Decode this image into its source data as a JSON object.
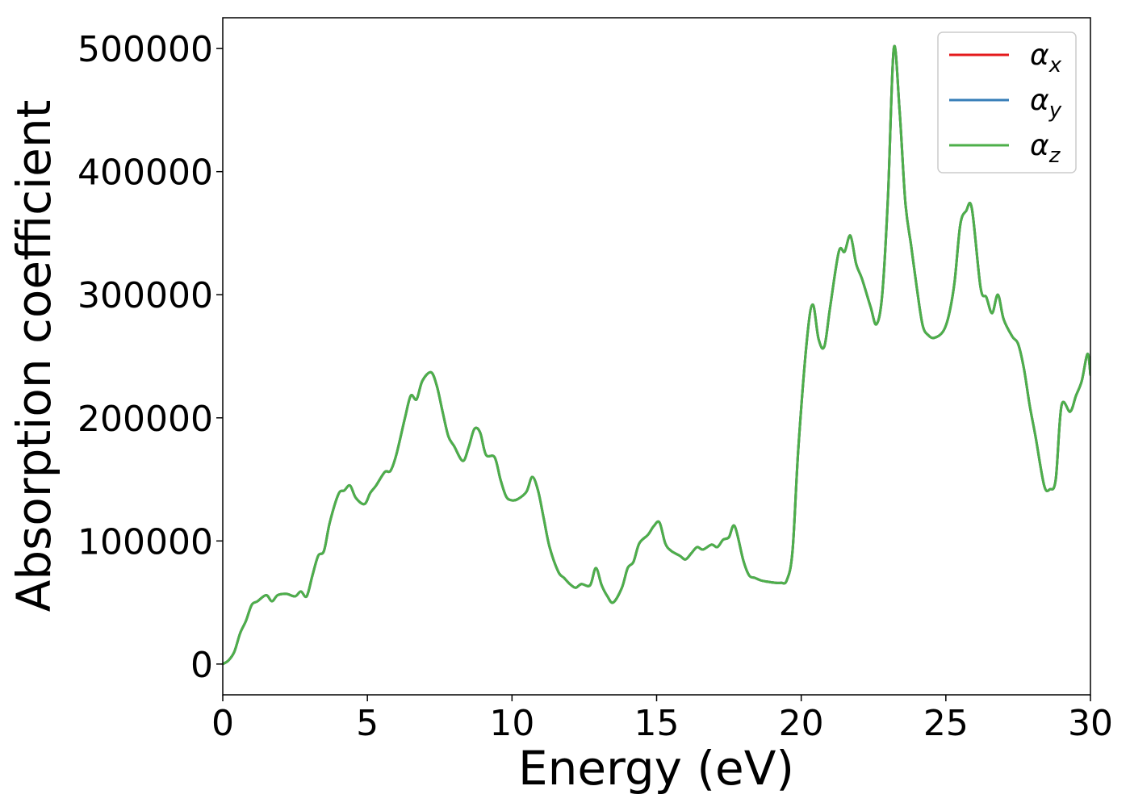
{
  "chart_data": {
    "type": "line",
    "title": "",
    "xlabel": "Energy (eV)",
    "ylabel": "Absorption coefficient",
    "xlim": [
      0,
      30
    ],
    "ylim": [
      -25000,
      525000
    ],
    "xticks": [
      0,
      5,
      10,
      15,
      20,
      25,
      30
    ],
    "yticks": [
      0,
      100000,
      200000,
      300000,
      400000,
      500000
    ],
    "xtick_labels": [
      "0",
      "5",
      "10",
      "15",
      "20",
      "25",
      "30"
    ],
    "ytick_labels": [
      "0",
      "100000",
      "200000",
      "300000",
      "400000",
      "500000"
    ],
    "grid": false,
    "legend_position": "top-right",
    "x": [
      0,
      0.2,
      0.4,
      0.6,
      0.8,
      1.0,
      1.2,
      1.5,
      1.7,
      1.9,
      2.2,
      2.5,
      2.7,
      2.9,
      3.1,
      3.3,
      3.5,
      3.7,
      4.0,
      4.2,
      4.4,
      4.6,
      4.9,
      5.1,
      5.3,
      5.6,
      5.8,
      6.0,
      6.3,
      6.5,
      6.7,
      6.9,
      7.2,
      7.4,
      7.6,
      7.8,
      8.0,
      8.3,
      8.5,
      8.7,
      8.9,
      9.1,
      9.4,
      9.6,
      9.8,
      10.0,
      10.2,
      10.5,
      10.7,
      10.9,
      11.1,
      11.3,
      11.6,
      11.8,
      12.0,
      12.2,
      12.4,
      12.7,
      12.9,
      13.1,
      13.3,
      13.5,
      13.8,
      14.0,
      14.2,
      14.4,
      14.7,
      14.9,
      15.1,
      15.3,
      15.5,
      15.8,
      16.0,
      16.2,
      16.4,
      16.6,
      16.9,
      17.1,
      17.3,
      17.5,
      17.7,
      18.0,
      18.2,
      18.4,
      18.6,
      18.8,
      19.1,
      19.3,
      19.5,
      19.7,
      19.9,
      20.2,
      20.4,
      20.6,
      20.8,
      21.0,
      21.3,
      21.5,
      21.7,
      21.9,
      22.1,
      22.4,
      22.6,
      22.8,
      23.0,
      23.2,
      23.4,
      23.6,
      23.8,
      24.0,
      24.2,
      24.4,
      24.6,
      24.9,
      25.1,
      25.3,
      25.5,
      25.7,
      25.9,
      26.2,
      26.4,
      26.6,
      26.8,
      27.0,
      27.3,
      27.5,
      27.7,
      27.9,
      28.1,
      28.4,
      28.6,
      28.8,
      29.0,
      29.3,
      29.5,
      29.7,
      29.9,
      30.0
    ],
    "series": [
      {
        "name": "α",
        "subscript": "x",
        "color": "#e41a1c",
        "values": [
          0,
          3000,
          10000,
          25000,
          35000,
          48000,
          51000,
          56000,
          51000,
          56000,
          57000,
          55000,
          59000,
          55000,
          72000,
          88000,
          92000,
          115000,
          138000,
          141000,
          145000,
          135000,
          130000,
          139000,
          145000,
          156000,
          157000,
          170000,
          200000,
          218000,
          215000,
          230000,
          237000,
          226000,
          205000,
          185000,
          177000,
          165000,
          176000,
          191000,
          188000,
          170000,
          168000,
          150000,
          136000,
          133000,
          134000,
          140000,
          152000,
          141000,
          118000,
          95000,
          75000,
          70000,
          65000,
          62000,
          65000,
          64000,
          78000,
          64000,
          55000,
          50000,
          62000,
          78000,
          83000,
          98000,
          105000,
          112000,
          115000,
          98000,
          92000,
          88000,
          85000,
          90000,
          95000,
          93000,
          97000,
          95000,
          101000,
          103000,
          112000,
          84000,
          72000,
          70000,
          68000,
          67000,
          66000,
          66000,
          68000,
          92000,
          175000,
          264000,
          292000,
          264000,
          258000,
          290000,
          335000,
          335000,
          348000,
          325000,
          313000,
          290000,
          276000,
          300000,
          380000,
          500000,
          450000,
          375000,
          340000,
          305000,
          275000,
          267000,
          265000,
          270000,
          283000,
          310000,
          357000,
          368000,
          370000,
          306000,
          298000,
          285000,
          300000,
          280000,
          266000,
          260000,
          240000,
          210000,
          185000,
          145000,
          142000,
          150000,
          210000,
          205000,
          218000,
          230000,
          252000,
          235000
        ]
      },
      {
        "name": "α",
        "subscript": "y",
        "color": "#377eb8",
        "values": [
          0,
          3000,
          10000,
          25000,
          35000,
          48000,
          51000,
          56000,
          51000,
          56000,
          57000,
          55000,
          59000,
          55000,
          72000,
          88000,
          92000,
          115000,
          138000,
          141000,
          145000,
          135000,
          130000,
          139000,
          145000,
          156000,
          157000,
          170000,
          200000,
          218000,
          215000,
          230000,
          237000,
          226000,
          205000,
          185000,
          177000,
          165000,
          176000,
          191000,
          188000,
          170000,
          168000,
          150000,
          136000,
          133000,
          134000,
          140000,
          152000,
          141000,
          118000,
          95000,
          75000,
          70000,
          65000,
          62000,
          65000,
          64000,
          78000,
          64000,
          55000,
          50000,
          62000,
          78000,
          83000,
          98000,
          105000,
          112000,
          115000,
          98000,
          92000,
          88000,
          85000,
          90000,
          95000,
          93000,
          97000,
          95000,
          101000,
          103000,
          112000,
          84000,
          72000,
          70000,
          68000,
          67000,
          66000,
          66000,
          68000,
          92000,
          175000,
          264000,
          292000,
          264000,
          258000,
          290000,
          335000,
          335000,
          348000,
          325000,
          313000,
          290000,
          276000,
          300000,
          380000,
          500000,
          450000,
          375000,
          340000,
          305000,
          275000,
          267000,
          265000,
          270000,
          283000,
          310000,
          357000,
          368000,
          370000,
          306000,
          298000,
          285000,
          300000,
          280000,
          266000,
          260000,
          240000,
          210000,
          185000,
          145000,
          142000,
          150000,
          210000,
          205000,
          218000,
          230000,
          252000,
          235000
        ]
      },
      {
        "name": "α",
        "subscript": "z",
        "color": "#4daf4a",
        "values": [
          0,
          3000,
          10000,
          25000,
          35000,
          48000,
          51000,
          56000,
          51000,
          56000,
          57000,
          55000,
          59000,
          55000,
          72000,
          88000,
          92000,
          115000,
          138000,
          141000,
          145000,
          135000,
          130000,
          139000,
          145000,
          156000,
          157000,
          170000,
          200000,
          218000,
          215000,
          230000,
          237000,
          226000,
          205000,
          185000,
          177000,
          165000,
          176000,
          191000,
          188000,
          170000,
          168000,
          150000,
          136000,
          133000,
          134000,
          140000,
          152000,
          141000,
          118000,
          95000,
          75000,
          70000,
          65000,
          62000,
          65000,
          64000,
          78000,
          64000,
          55000,
          50000,
          62000,
          78000,
          83000,
          98000,
          105000,
          112000,
          115000,
          98000,
          92000,
          88000,
          85000,
          90000,
          95000,
          93000,
          97000,
          95000,
          101000,
          103000,
          112000,
          84000,
          72000,
          70000,
          68000,
          67000,
          66000,
          66000,
          68000,
          92000,
          175000,
          264000,
          292000,
          264000,
          258000,
          290000,
          335000,
          335000,
          348000,
          325000,
          313000,
          290000,
          276000,
          300000,
          380000,
          500000,
          450000,
          375000,
          340000,
          305000,
          275000,
          267000,
          265000,
          270000,
          283000,
          310000,
          357000,
          368000,
          370000,
          306000,
          298000,
          285000,
          300000,
          280000,
          266000,
          260000,
          240000,
          210000,
          185000,
          145000,
          142000,
          150000,
          210000,
          205000,
          218000,
          230000,
          252000,
          235000
        ]
      }
    ]
  }
}
